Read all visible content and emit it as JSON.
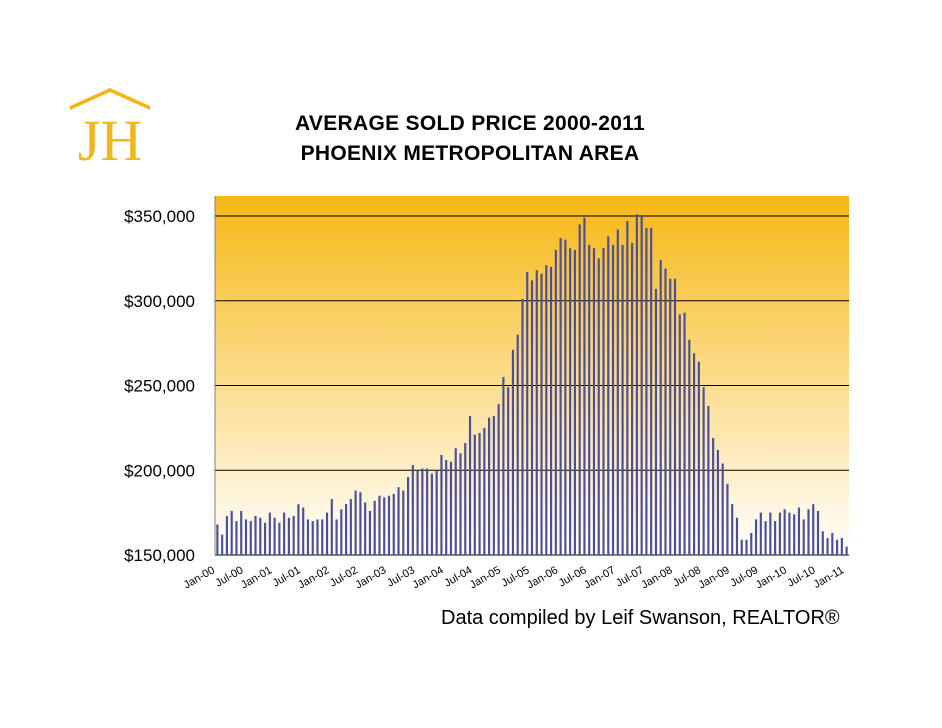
{
  "logo": {
    "text": "JH",
    "color": "#F2B51C"
  },
  "header": {
    "title_line1": "AVERAGE SOLD PRICE 2000-2011",
    "title_line2": "PHOENIX METROPOLITAN AREA"
  },
  "footer": {
    "credit": "Data compiled by Leif Swanson, REALTOR®"
  },
  "colors": {
    "bar": "#4B4E9A",
    "gradient_top": "#F7B815",
    "gradient_bottom": "#FFFFFF",
    "gridline": "#000000"
  },
  "chart_data": {
    "type": "bar",
    "title": "AVERAGE SOLD PRICE 2000-2011 PHOENIX METROPOLITAN AREA",
    "xlabel": "",
    "ylabel": "",
    "ylim": [
      150000,
      350000
    ],
    "yticks": [
      150000,
      200000,
      250000,
      300000,
      350000
    ],
    "ytick_labels": [
      "$150,000",
      "$200,000",
      "$250,000",
      "$300,000",
      "$350,000"
    ],
    "grid": true,
    "legend": "none",
    "start_month": "Jan-00",
    "xtick_labels": [
      "Jan-00",
      "Jul-00",
      "Jan-01",
      "Jul-01",
      "Jan-02",
      "Jul-02",
      "Jan-03",
      "Jul-03",
      "Jan-04",
      "Jul-04",
      "Jan-05",
      "Jul-05",
      "Jan-06",
      "Jul-06",
      "Jan-07",
      "Jul-07",
      "Jan-08",
      "Jul-08",
      "Jan-09",
      "Jul-09",
      "Jan-10",
      "Jul-10",
      "Jan-11"
    ],
    "values": [
      168000,
      162000,
      173000,
      176000,
      170000,
      176000,
      171000,
      170000,
      173000,
      172000,
      169000,
      175000,
      172000,
      169000,
      175000,
      172000,
      173000,
      180000,
      178000,
      171000,
      170000,
      171000,
      171000,
      175000,
      183000,
      171000,
      177000,
      180000,
      183000,
      188000,
      187000,
      181000,
      176000,
      182000,
      185000,
      184000,
      185000,
      186000,
      190000,
      188000,
      196000,
      203000,
      200000,
      201000,
      201000,
      198000,
      200000,
      209000,
      206000,
      205000,
      213000,
      210000,
      216000,
      232000,
      221000,
      222000,
      225000,
      231000,
      232000,
      239000,
      255000,
      249000,
      271000,
      280000,
      301000,
      317000,
      312000,
      318000,
      316000,
      321000,
      320000,
      330000,
      337000,
      336000,
      331000,
      330000,
      345000,
      349000,
      333000,
      331000,
      325000,
      331000,
      338000,
      333000,
      342000,
      333000,
      347000,
      334000,
      351000,
      350000,
      343000,
      343000,
      307000,
      324000,
      319000,
      313000,
      313000,
      292000,
      293000,
      277000,
      269000,
      264000,
      249000,
      238000,
      219000,
      212000,
      204000,
      192000,
      180000,
      172000,
      159000,
      159000,
      163000,
      171000,
      175000,
      170000,
      175000,
      170000,
      175000,
      177000,
      175000,
      174000,
      178000,
      171000,
      177000,
      180000,
      176000,
      164000,
      160000,
      163000,
      159000,
      160000,
      155000
    ]
  }
}
